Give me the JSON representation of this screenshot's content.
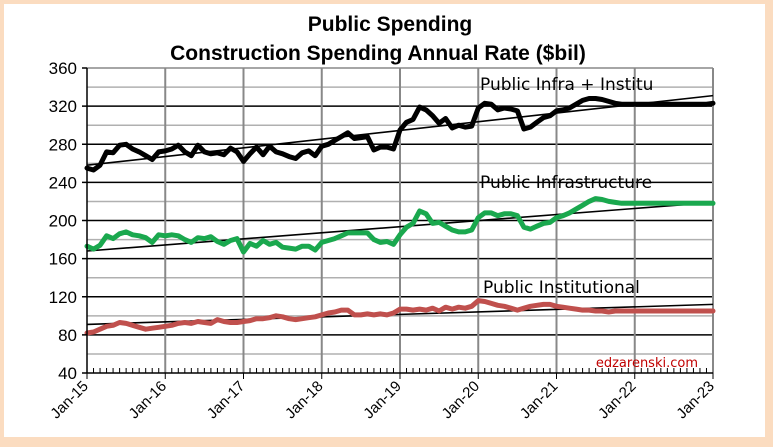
{
  "chart_data": {
    "type": "line",
    "title": "Public Spending",
    "subtitle": "Construction Spending Annual Rate ($bil)",
    "xlabel": "",
    "ylabel": "",
    "ylim": [
      40,
      360
    ],
    "yticks": [
      40,
      80,
      120,
      160,
      200,
      240,
      280,
      320,
      360
    ],
    "ytick_labels": [
      "40",
      "80",
      "120",
      "160",
      "200",
      "240",
      "280",
      "320",
      "360"
    ],
    "xtick_labels": [
      "Jan-15",
      "Jan-16",
      "Jan-17",
      "Jan-18",
      "Jan-19",
      "Jan-20",
      "Jan-21",
      "Jan-22",
      "Jan-23"
    ],
    "x_start": "Jan-15",
    "x_end": "Jan-23",
    "x_frequency": "monthly",
    "grid": true,
    "legend": "none",
    "watermark": "edzarenski.com",
    "series": [
      {
        "name": "Public Infra + Institu",
        "label": "Public Infra + Institu",
        "color": "#000000",
        "values": [
          255,
          253,
          258,
          272,
          271,
          279,
          280,
          275,
          272,
          268,
          264,
          272,
          273,
          275,
          279,
          272,
          268,
          279,
          272,
          270,
          271,
          269,
          276,
          272,
          262,
          270,
          277,
          269,
          278,
          272,
          270,
          267,
          265,
          271,
          273,
          268,
          278,
          280,
          284,
          288,
          292,
          286,
          287,
          288,
          274,
          277,
          277,
          275,
          295,
          303,
          306,
          319,
          316,
          310,
          302,
          307,
          297,
          300,
          298,
          299,
          318,
          323,
          322,
          316,
          318,
          317,
          315,
          296,
          298,
          303,
          308,
          310,
          315,
          316,
          318,
          322,
          326,
          328,
          328,
          327,
          325,
          323,
          322,
          322,
          322,
          322,
          322,
          322,
          322,
          322,
          322,
          322,
          322,
          322,
          322,
          322,
          323
        ],
        "trend": {
          "start": 258,
          "end": 331
        }
      },
      {
        "name": "Public Infrastructure",
        "label": "Public Infrastructure",
        "color": "#1aa84e",
        "values": [
          173,
          170,
          174,
          184,
          181,
          186,
          188,
          185,
          184,
          182,
          177,
          185,
          184,
          185,
          184,
          180,
          177,
          182,
          181,
          183,
          178,
          175,
          179,
          181,
          167,
          176,
          173,
          179,
          175,
          177,
          172,
          171,
          170,
          173,
          173,
          169,
          177,
          179,
          181,
          184,
          187,
          187,
          187,
          187,
          180,
          177,
          178,
          175,
          185,
          193,
          197,
          210,
          207,
          197,
          198,
          194,
          190,
          188,
          188,
          190,
          203,
          208,
          208,
          205,
          207,
          207,
          205,
          193,
          191,
          194,
          197,
          198,
          203,
          205,
          208,
          212,
          216,
          220,
          223,
          222,
          220,
          219,
          218,
          218,
          218,
          218,
          218,
          218,
          218,
          218,
          218,
          218,
          218,
          218,
          218,
          218,
          218
        ],
        "trend": {
          "start": 168,
          "end": 219
        }
      },
      {
        "name": "Public Institutional",
        "label": "Public Institutional",
        "color": "#c0504d",
        "values": [
          82,
          83,
          86,
          89,
          90,
          93,
          92,
          90,
          88,
          86,
          87,
          88,
          89,
          90,
          92,
          93,
          92,
          94,
          93,
          92,
          96,
          94,
          93,
          93,
          94,
          95,
          97,
          97,
          98,
          100,
          99,
          97,
          96,
          97,
          98,
          99,
          101,
          103,
          104,
          106,
          106,
          101,
          101,
          102,
          101,
          102,
          101,
          103,
          107,
          107,
          106,
          107,
          106,
          108,
          105,
          109,
          107,
          109,
          108,
          110,
          116,
          115,
          113,
          111,
          110,
          108,
          106,
          108,
          110,
          111,
          112,
          112,
          110,
          109,
          108,
          107,
          106,
          106,
          105,
          105,
          104,
          105,
          105,
          105,
          105,
          105,
          105,
          105,
          105,
          105,
          105,
          105,
          105,
          105,
          105,
          105,
          105
        ],
        "trend": {
          "start": 91,
          "end": 112
        }
      }
    ]
  }
}
